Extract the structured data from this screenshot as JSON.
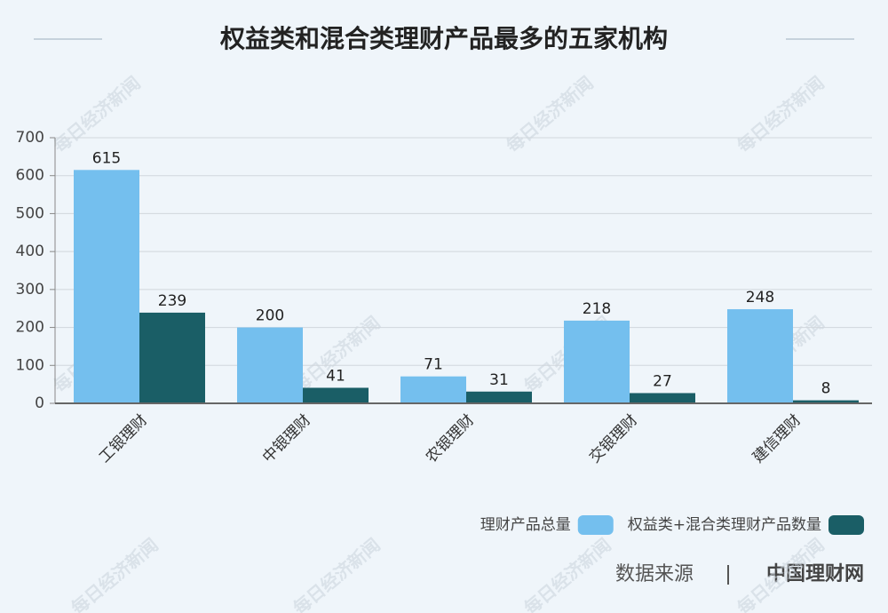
{
  "chart_data": {
    "type": "bar",
    "title": "权益类和混合类理财产品最多的五家机构",
    "categories": [
      "工银理财",
      "中银理财",
      "农银理财",
      "交银理财",
      "建信理财"
    ],
    "series": [
      {
        "name": "理财产品总量",
        "color": "#74bfee",
        "values": [
          615,
          200,
          71,
          218,
          248
        ]
      },
      {
        "name": "权益类+混合类理财产品数量",
        "color": "#1a5e66",
        "values": [
          239,
          41,
          31,
          27,
          8
        ]
      }
    ],
    "ylim": [
      0,
      700
    ],
    "yticks": [
      0,
      100,
      200,
      300,
      400,
      500,
      600,
      700
    ],
    "grid": true,
    "legend": "bottom-right",
    "source_label": "数据来源",
    "source": "中国理财网",
    "watermark": "每日经济新闻"
  }
}
